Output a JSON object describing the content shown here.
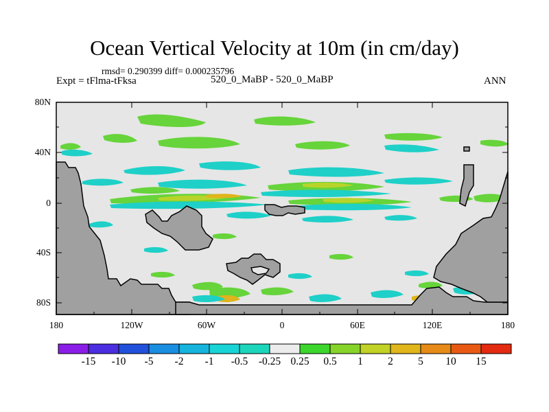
{
  "title": "Ocean Vertical Velocity at 10m (in cm/day)",
  "stats": "rmsd= 0.290399 diff= 0.000235796",
  "left_label": "Expt = tFlma-tFksa",
  "center_label": "520_0_MaBP - 520_0_MaBP",
  "right_label": "ANN",
  "lat_labels": [
    "80N",
    "40N",
    "0",
    "40S",
    "80S"
  ],
  "lon_labels": [
    "180",
    "120W",
    "60W",
    "0",
    "60E",
    "120E",
    "180"
  ],
  "colorbar": {
    "labels": [
      "-15",
      "-10",
      "-5",
      "-2",
      "-1",
      "-0.5",
      "-0.25",
      "0.25",
      "0.5",
      "1",
      "2",
      "5",
      "10",
      "15"
    ],
    "colors": [
      "#8a1ee8",
      "#4a2ee0",
      "#2050dc",
      "#1a8ee0",
      "#16b4dc",
      "#18d4d6",
      "#1cd6bc",
      "#ececec",
      "#3cd62c",
      "#86d42a",
      "#c2d226",
      "#e0b61c",
      "#e68a18",
      "#e85a14",
      "#e42a10"
    ]
  },
  "colors": {
    "land": "#a0a0a0",
    "ocean": "#e6e6e6",
    "positive_small": "#66d43a",
    "positive_mid": "#b8d42a",
    "positive_high": "#e0b41c",
    "negative_small": "#1ed0c8"
  }
}
